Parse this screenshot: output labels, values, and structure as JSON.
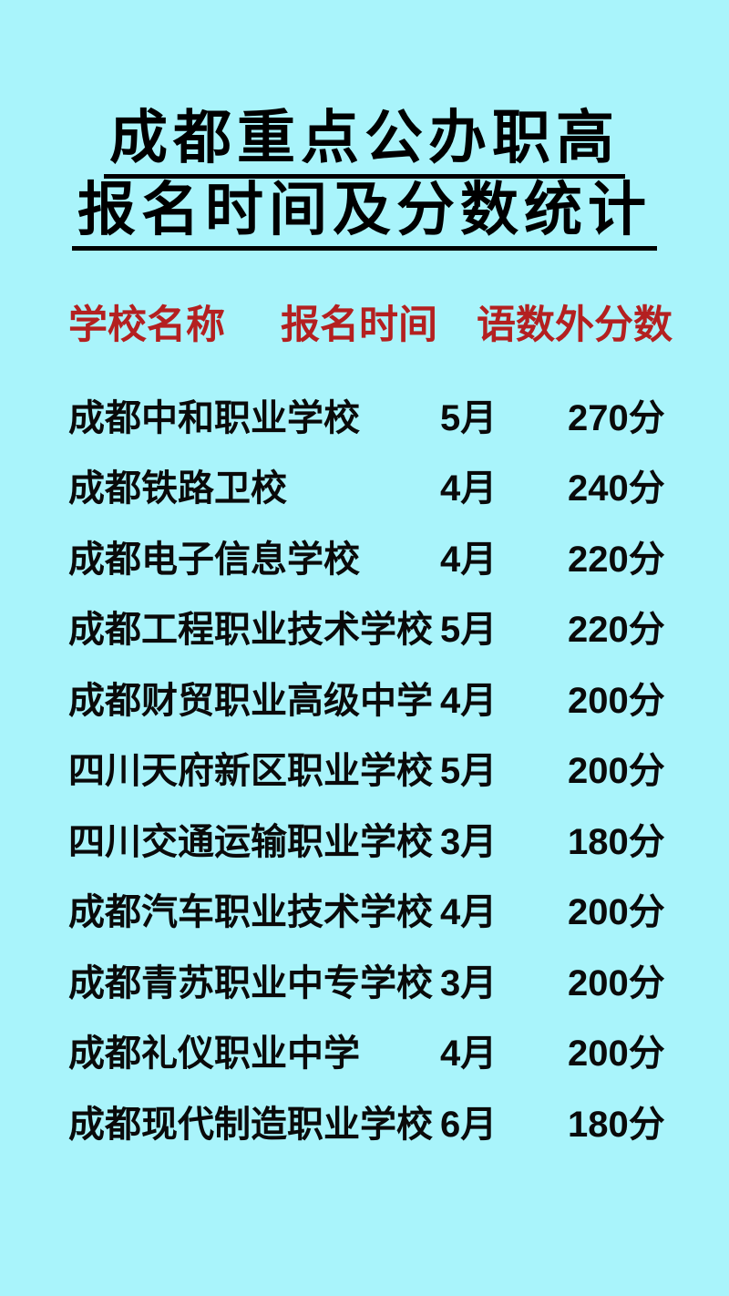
{
  "title": {
    "line1": "成都重点公办职高",
    "line2": "报名时间及分数统计"
  },
  "table": {
    "headers": [
      "学校名称",
      "报名时间",
      "语数外分数"
    ],
    "rows": [
      {
        "school": "成都中和职业学校",
        "month": "5月",
        "score": "270分"
      },
      {
        "school": "成都铁路卫校",
        "month": "4月",
        "score": "240分"
      },
      {
        "school": "成都电子信息学校",
        "month": "4月",
        "score": "220分"
      },
      {
        "school": "成都工程职业技术学校",
        "month": "5月",
        "score": "220分"
      },
      {
        "school": "成都财贸职业高级中学",
        "month": "4月",
        "score": "200分"
      },
      {
        "school": "四川天府新区职业学校",
        "month": "5月",
        "score": "200分"
      },
      {
        "school": "四川交通运输职业学校",
        "month": "3月",
        "score": "180分"
      },
      {
        "school": "成都汽车职业技术学校",
        "month": "4月",
        "score": "200分"
      },
      {
        "school": "成都青苏职业中专学校",
        "month": "3月",
        "score": "200分"
      },
      {
        "school": "成都礼仪职业中学",
        "month": "4月",
        "score": "200分"
      },
      {
        "school": "成都现代制造职业学校",
        "month": "6月",
        "score": "180分"
      }
    ]
  },
  "colors": {
    "background": "#A9F4FB",
    "header_text": "#B42020",
    "body_text": "#0A0A0A",
    "title_text": "#000000"
  }
}
